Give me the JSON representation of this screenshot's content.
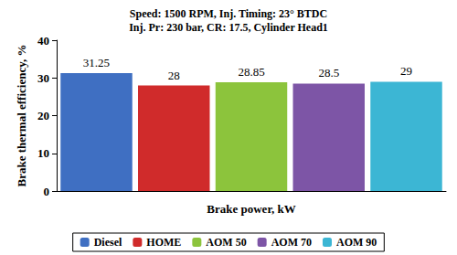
{
  "chart_data": {
    "type": "bar",
    "title": "Speed: 1500 RPM, Inj. Timing: 23° BTDC\nInj. Pr: 230 bar, CR: 17.5, Cylinder Head1",
    "x_label": "Brake power, kW",
    "y_label": "Brake thermal efficiency, %",
    "categories": [
      null
    ],
    "series": [
      {
        "name": "Diesel",
        "color": "#3f6fc2",
        "values": [
          31.25
        ]
      },
      {
        "name": "HOME",
        "color": "#d02b2b",
        "values": [
          28
        ]
      },
      {
        "name": "AOM 50",
        "color": "#8cc43c",
        "values": [
          28.85
        ]
      },
      {
        "name": "AOM 70",
        "color": "#7d55a6",
        "values": [
          28.5
        ]
      },
      {
        "name": "AOM 90",
        "color": "#3cb6d4",
        "values": [
          29
        ]
      }
    ],
    "ylim": [
      0,
      40
    ],
    "yticks": [
      0,
      10,
      20,
      30,
      40
    ],
    "grid": false,
    "legend": "bottom",
    "data_labels": true
  }
}
